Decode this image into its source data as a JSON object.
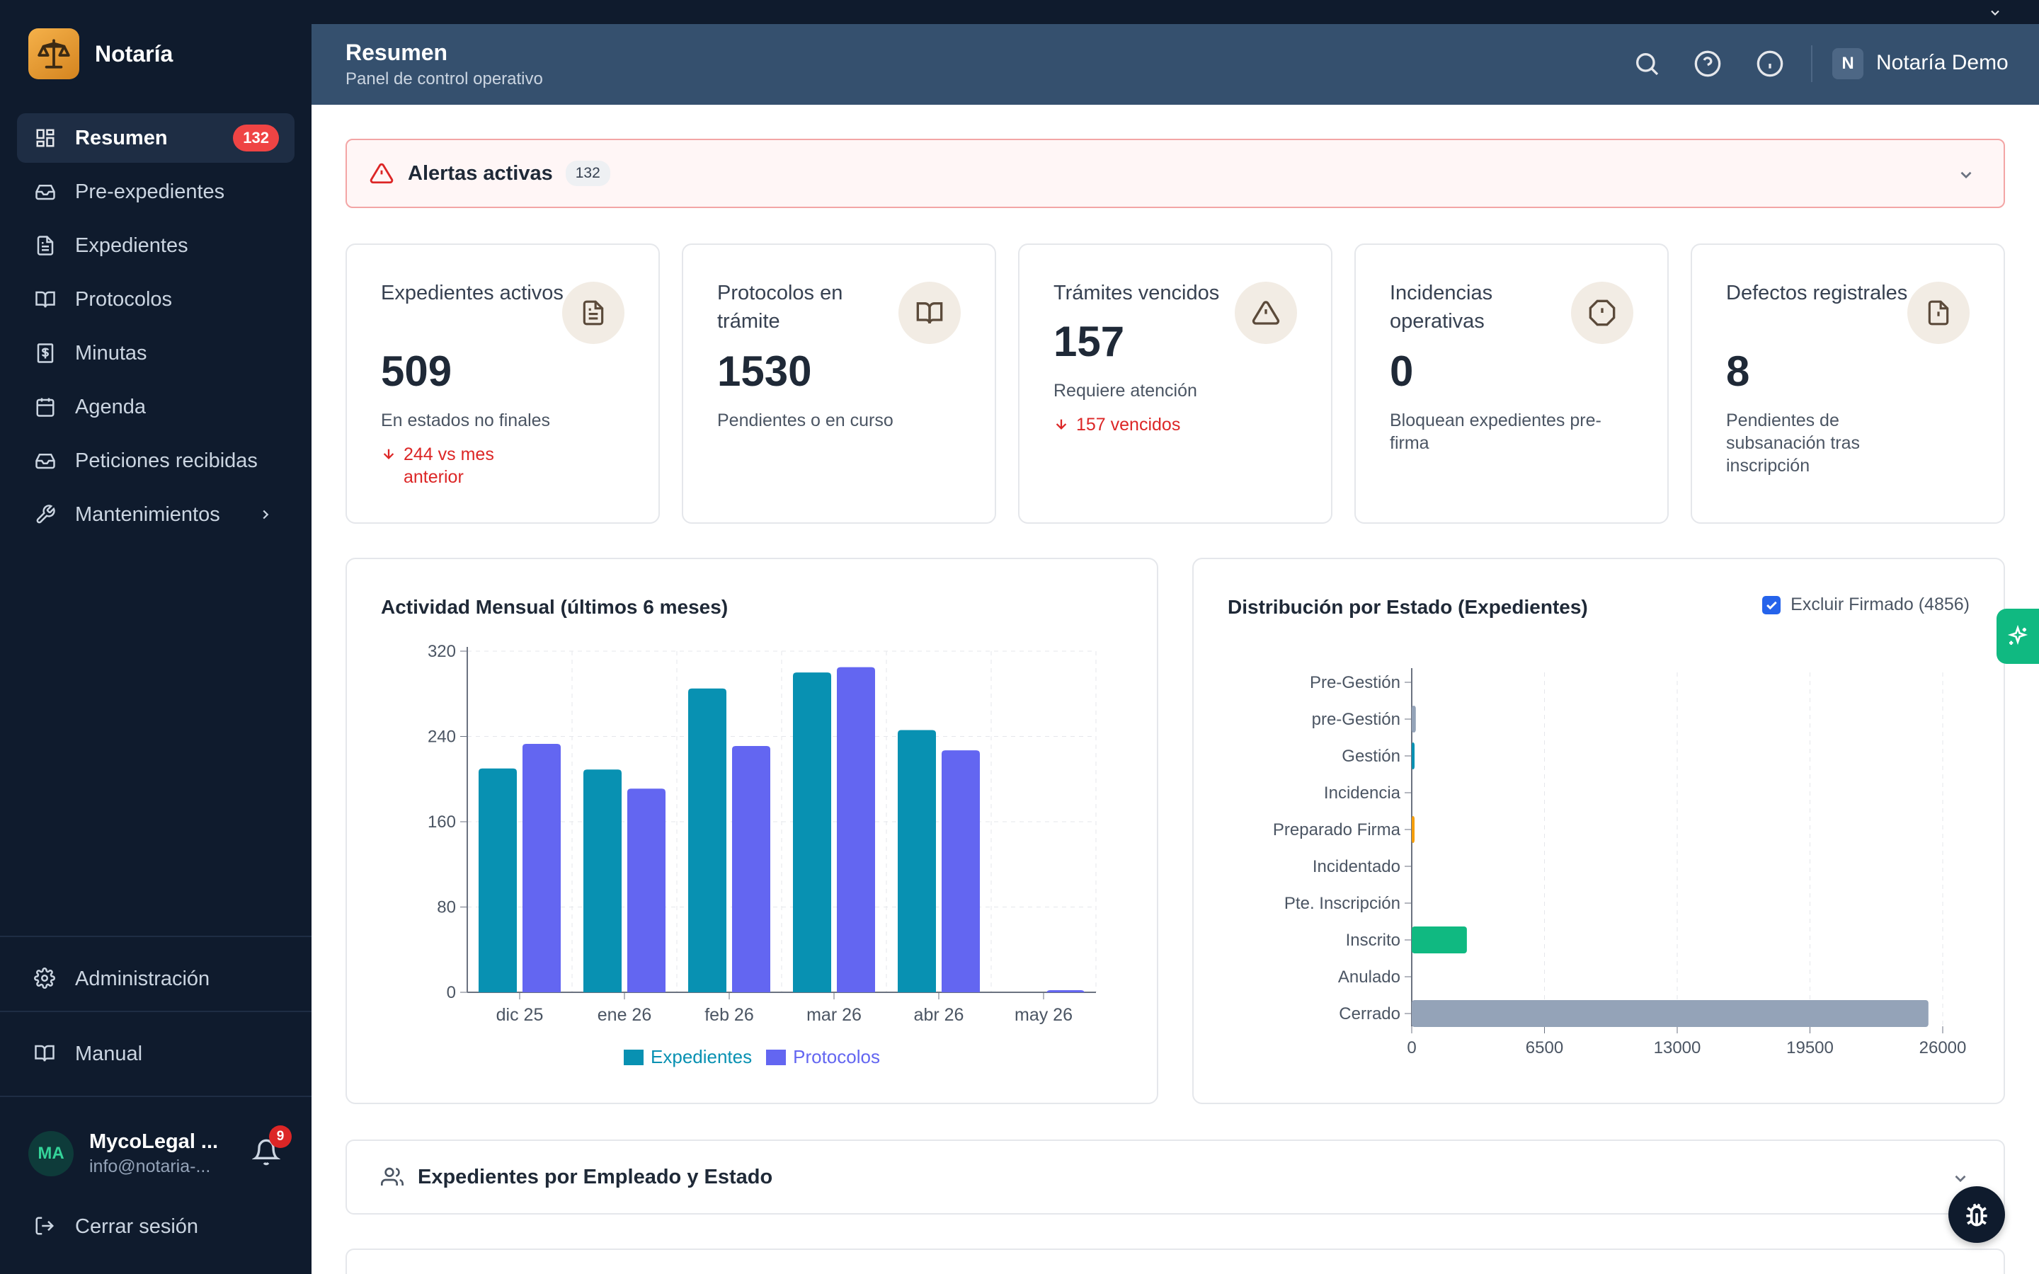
{
  "app": {
    "name": "Notaría"
  },
  "sidebar": {
    "items": [
      {
        "label": "Resumen",
        "icon": "dashboard-icon",
        "badge": "132",
        "active": true
      },
      {
        "label": "Pre-expedientes",
        "icon": "inbox-icon"
      },
      {
        "label": "Expedientes",
        "icon": "file-text-icon"
      },
      {
        "label": "Protocolos",
        "icon": "book-icon"
      },
      {
        "label": "Minutas",
        "icon": "receipt-icon"
      },
      {
        "label": "Agenda",
        "icon": "calendar-icon"
      },
      {
        "label": "Peticiones recibidas",
        "icon": "inbox-icon"
      },
      {
        "label": "Mantenimientos",
        "icon": "wrench-icon",
        "has_submenu": true
      }
    ],
    "admin_label": "Administración",
    "manual_label": "Manual",
    "user": {
      "initials": "MA",
      "name": "MycoLegal ...",
      "email": "info@notaria-...",
      "notifications": "9"
    },
    "logout_label": "Cerrar sesión"
  },
  "header": {
    "title": "Resumen",
    "subtitle": "Panel de control operativo",
    "org_initial": "N",
    "org_name": "Notaría Demo"
  },
  "alerts": {
    "title": "Alertas activas",
    "count": "132"
  },
  "kpis": [
    {
      "title": "Expedientes activos",
      "value": "509",
      "desc": "En estados no finales",
      "trend": "244 vs mes anterior",
      "icon": "file-text-icon"
    },
    {
      "title": "Protocolos en trámite",
      "value": "1530",
      "desc": "Pendientes o en curso",
      "icon": "book-open-icon"
    },
    {
      "title": "Trámites vencidos",
      "value": "157",
      "desc": "Requiere atención",
      "trend": "157 vencidos",
      "icon": "warning-triangle-icon"
    },
    {
      "title": "Incidencias operativas",
      "value": "0",
      "desc": "Bloquean expedientes pre-firma",
      "icon": "alert-octagon-icon"
    },
    {
      "title": "Defectos registrales",
      "value": "8",
      "desc": "Pendientes de subsanación tras inscripción",
      "icon": "file-alert-icon"
    }
  ],
  "monthly_chart": {
    "title": "Actividad Mensual (últimos 6 meses)"
  },
  "state_chart": {
    "title": "Distribución por Estado (Expedientes)",
    "exclude_label": "Excluir Firmado (4856)",
    "exclude_checked": true
  },
  "chart_data": [
    {
      "type": "bar",
      "title": "Actividad Mensual (últimos 6 meses)",
      "categories": [
        "dic 25",
        "ene 26",
        "feb 26",
        "mar 26",
        "abr 26",
        "may 26"
      ],
      "series": [
        {
          "name": "Expedientes",
          "color": "#0891b2",
          "values": [
            210,
            209,
            285,
            300,
            246,
            0
          ]
        },
        {
          "name": "Protocolos",
          "color": "#6366f1",
          "values": [
            233,
            191,
            231,
            305,
            227,
            2
          ]
        }
      ],
      "ylim": [
        0,
        320
      ],
      "yticks": [
        0,
        80,
        160,
        240,
        320
      ],
      "grid": true,
      "legend": "bottom"
    },
    {
      "type": "bar",
      "orientation": "horizontal",
      "title": "Distribución por Estado (Expedientes)",
      "categories": [
        "Pre-Gestión",
        "pre-Gestión",
        "Gestión",
        "Incidencia",
        "Preparado Firma",
        "Incidentado",
        "Pte. Inscripción",
        "Inscrito",
        "Anulado",
        "Cerrado"
      ],
      "values": [
        0,
        200,
        120,
        0,
        90,
        0,
        0,
        2700,
        0,
        25300
      ],
      "colors": [
        "#94a3b8",
        "#94a3b8",
        "#0891b2",
        "#ef4444",
        "#f59e0b",
        "#ef4444",
        "#6366f1",
        "#10b981",
        "#94a3b8",
        "#94a3b8"
      ],
      "xlim": [
        0,
        26000
      ],
      "xticks": [
        0,
        6500,
        13000,
        19500,
        26000
      ],
      "grid": true
    }
  ],
  "employee_section": {
    "title": "Expedientes por Empleado y Estado"
  }
}
